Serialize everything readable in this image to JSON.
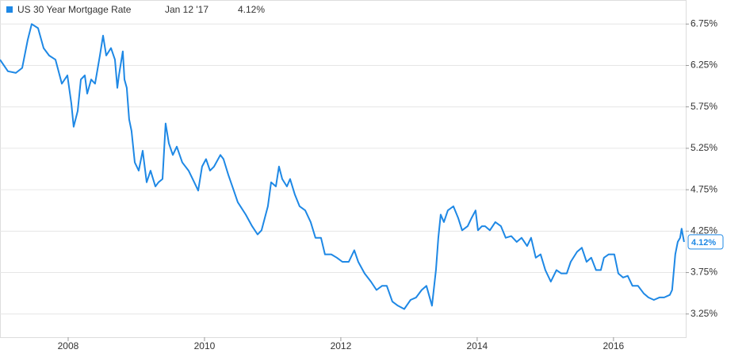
{
  "chart_data": {
    "type": "line",
    "current": {
      "date": "Jan 12 '17",
      "label": "4.12%",
      "value": 4.12
    },
    "series": [
      {
        "name": "US 30 Year Mortgage Rate",
        "color": "#1e88e5",
        "x": [
          2007.0,
          2007.116,
          2007.233,
          2007.326,
          2007.407,
          2007.465,
          2007.558,
          2007.64,
          2007.721,
          2007.814,
          2007.907,
          2007.988,
          2008.047,
          2008.081,
          2008.14,
          2008.186,
          2008.244,
          2008.279,
          2008.337,
          2008.395,
          2008.465,
          2008.512,
          2008.558,
          2008.628,
          2008.686,
          2008.721,
          2008.744,
          2008.802,
          2008.826,
          2008.86,
          2008.895,
          2008.93,
          2008.977,
          2009.035,
          2009.093,
          2009.151,
          2009.209,
          2009.279,
          2009.326,
          2009.384,
          2009.43,
          2009.477,
          2009.535,
          2009.593,
          2009.674,
          2009.767,
          2009.849,
          2009.907,
          2009.965,
          2010.023,
          2010.081,
          2010.14,
          2010.233,
          2010.279,
          2010.349,
          2010.43,
          2010.488,
          2010.605,
          2010.698,
          2010.779,
          2010.837,
          2010.93,
          2010.977,
          2011.047,
          2011.093,
          2011.14,
          2011.209,
          2011.256,
          2011.326,
          2011.395,
          2011.477,
          2011.558,
          2011.628,
          2011.709,
          2011.767,
          2011.86,
          2011.942,
          2012.023,
          2012.116,
          2012.198,
          2012.256,
          2012.349,
          2012.442,
          2012.523,
          2012.605,
          2012.674,
          2012.756,
          2012.837,
          2012.93,
          2013.023,
          2013.105,
          2013.186,
          2013.256,
          2013.337,
          2013.395,
          2013.43,
          2013.465,
          2013.512,
          2013.57,
          2013.651,
          2013.721,
          2013.779,
          2013.86,
          2013.919,
          2013.977,
          2014.012,
          2014.07,
          2014.116,
          2014.186,
          2014.267,
          2014.349,
          2014.419,
          2014.5,
          2014.581,
          2014.651,
          2014.733,
          2014.791,
          2014.86,
          2014.93,
          2015.0,
          2015.081,
          2015.163,
          2015.233,
          2015.314,
          2015.372,
          2015.465,
          2015.535,
          2015.605,
          2015.674,
          2015.744,
          2015.814,
          2015.86,
          2015.93,
          2016.012,
          2016.07,
          2016.14,
          2016.209,
          2016.279,
          2016.36,
          2016.442,
          2016.512,
          2016.593,
          2016.674,
          2016.744,
          2016.826,
          2016.86,
          2016.907,
          2016.942,
          2016.977,
          2017.0,
          2017.035
        ],
        "values": [
          6.32,
          6.18,
          6.16,
          6.22,
          6.56,
          6.75,
          6.7,
          6.46,
          6.37,
          6.32,
          6.03,
          6.13,
          5.79,
          5.51,
          5.7,
          6.08,
          6.13,
          5.91,
          6.08,
          6.03,
          6.37,
          6.61,
          6.37,
          6.46,
          6.32,
          5.98,
          6.13,
          6.42,
          6.08,
          5.98,
          5.6,
          5.46,
          5.08,
          4.98,
          5.22,
          4.84,
          4.98,
          4.79,
          4.84,
          4.88,
          5.55,
          5.31,
          5.17,
          5.27,
          5.08,
          4.98,
          4.84,
          4.74,
          5.03,
          5.12,
          4.98,
          5.03,
          5.17,
          5.12,
          4.93,
          4.74,
          4.6,
          4.45,
          4.31,
          4.21,
          4.26,
          4.55,
          4.84,
          4.79,
          5.03,
          4.88,
          4.79,
          4.88,
          4.69,
          4.55,
          4.5,
          4.36,
          4.17,
          4.17,
          3.97,
          3.97,
          3.93,
          3.88,
          3.88,
          4.02,
          3.88,
          3.74,
          3.64,
          3.54,
          3.59,
          3.59,
          3.4,
          3.35,
          3.31,
          3.42,
          3.45,
          3.54,
          3.59,
          3.35,
          3.78,
          4.17,
          4.45,
          4.36,
          4.5,
          4.55,
          4.41,
          4.26,
          4.31,
          4.41,
          4.5,
          4.26,
          4.31,
          4.31,
          4.26,
          4.36,
          4.31,
          4.17,
          4.19,
          4.12,
          4.17,
          4.07,
          4.17,
          3.93,
          3.97,
          3.78,
          3.64,
          3.78,
          3.74,
          3.74,
          3.88,
          4.0,
          4.05,
          3.88,
          3.93,
          3.78,
          3.78,
          3.93,
          3.97,
          3.97,
          3.74,
          3.69,
          3.71,
          3.59,
          3.59,
          3.5,
          3.45,
          3.42,
          3.45,
          3.45,
          3.48,
          3.54,
          3.97,
          4.12,
          4.17,
          4.28,
          4.12
        ]
      }
    ],
    "xlim": [
      2007.0,
      2017.06
    ],
    "ylim": [
      2.97,
      7.04
    ],
    "xticks": [
      2008,
      2010,
      2012,
      2014,
      2016
    ],
    "yticks": [
      {
        "value": 3.25,
        "label": "3.25%"
      },
      {
        "value": 3.75,
        "label": "3.75%"
      },
      {
        "value": 4.25,
        "label": "4.25%"
      },
      {
        "value": 4.75,
        "label": "4.75%"
      },
      {
        "value": 5.25,
        "label": "5.25%"
      },
      {
        "value": 5.75,
        "label": "5.75%"
      },
      {
        "value": 6.25,
        "label": "6.25%"
      },
      {
        "value": 6.75,
        "label": "6.75%"
      }
    ],
    "grid": true
  }
}
